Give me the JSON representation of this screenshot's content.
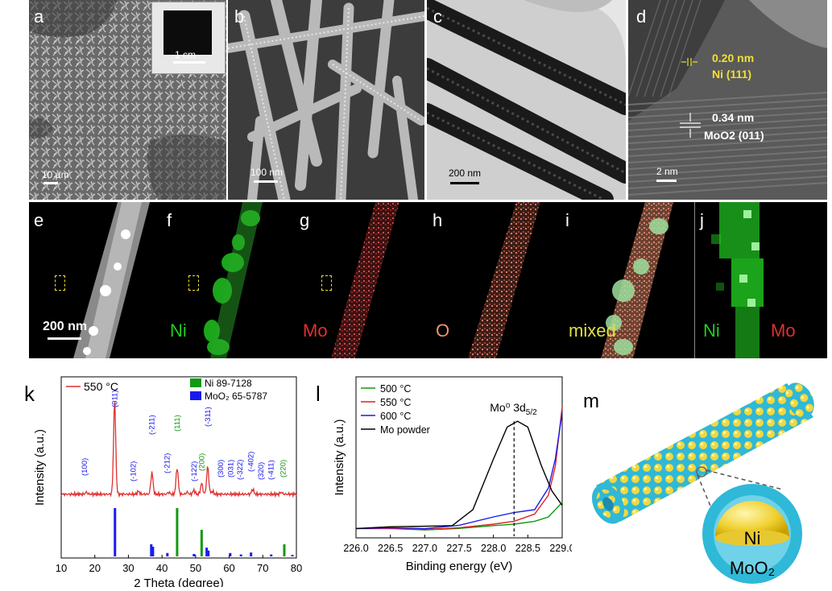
{
  "row1": {
    "a": {
      "label": "a",
      "scalebar": "10 µm",
      "inset_scale": "1 cm"
    },
    "b": {
      "label": "b",
      "scalebar": "100 nm"
    },
    "c": {
      "label": "c",
      "scalebar": "200 nm"
    },
    "d": {
      "label": "d",
      "scalebar": "2 nm",
      "fringe1_d": "0.20 nm",
      "fringe1_plane": "Ni (111)",
      "fringe2_d": "0.34 nm",
      "fringe2_plane": "MoO2 (011)"
    }
  },
  "row2": {
    "e": {
      "label": "e",
      "scalebar": "200 nm"
    },
    "f": {
      "label": "f",
      "element": "Ni"
    },
    "g": {
      "label": "g",
      "element": "Mo"
    },
    "h": {
      "label": "h",
      "element": "O"
    },
    "i": {
      "label": "i",
      "element": "mixed"
    },
    "j": {
      "label": "j",
      "element1": "Ni",
      "element2": "Mo"
    }
  },
  "colors": {
    "ni": "#22cc22",
    "mo": "#e03030",
    "o": "#f09070",
    "mixed": "#e0e040",
    "xrd_line": "#e03030",
    "ni_ref": "#119911",
    "moo2_ref": "#1a1aee"
  },
  "panel_k": {
    "label": "k",
    "legend_sample": "550 °C",
    "legend_ref1": "Ni 89-7128",
    "legend_ref2": "MoO₂ 65-5787",
    "xlabel": "2 Theta (degree)",
    "ylabel": "Intensity (a.u.)",
    "xticks": [
      "10",
      "20",
      "30",
      "40",
      "50",
      "60",
      "70",
      "80"
    ]
  },
  "panel_l": {
    "label": "l",
    "annotation_main": "Mo⁰ 3d",
    "annotation_sub": "5/2",
    "xlabel": "Binding energy (eV)",
    "ylabel": "Intensity (a.u.)",
    "xticks": [
      "226.0",
      "226.5",
      "227.0",
      "227.5",
      "228.0",
      "228.5",
      "229.0"
    ]
  },
  "panel_m": {
    "label": "m",
    "core": "Ni",
    "shell": "MoO₂"
  },
  "chart_data": [
    {
      "type": "line",
      "panel": "k",
      "xlabel": "2 Theta (degree)",
      "ylabel": "Intensity (a.u.)",
      "xlim": [
        10,
        80
      ],
      "series": [
        {
          "name": "550 °C",
          "x": [
            10,
            17.5,
            22,
            25.9,
            29.5,
            33,
            37,
            42,
            44.5,
            47.5,
            49.5,
            51.8,
            53.6,
            55,
            58,
            60.5,
            62.5,
            64.5,
            67,
            69.5,
            72,
            75.5,
            78,
            80
          ],
          "y": [
            0.05,
            0.07,
            0.05,
            1.0,
            0.06,
            0.08,
            0.27,
            0.07,
            0.32,
            0.07,
            0.09,
            0.16,
            0.33,
            0.08,
            0.05,
            0.06,
            0.05,
            0.05,
            0.1,
            0.06,
            0.05,
            0.07,
            0.05,
            0.05
          ]
        }
      ],
      "peak_labels": [
        {
          "x": 17,
          "label": "(100)",
          "phase": "MoO2"
        },
        {
          "x": 26,
          "label": "(011)",
          "phase": "MoO2"
        },
        {
          "x": 31.5,
          "label": "(-102)",
          "phase": "MoO2"
        },
        {
          "x": 37,
          "label": "(-211)",
          "phase": "MoO2"
        },
        {
          "x": 41.5,
          "label": "(-212)",
          "phase": "MoO2"
        },
        {
          "x": 44.5,
          "label": "(111)",
          "phase": "Ni"
        },
        {
          "x": 49.5,
          "label": "(-122)",
          "phase": "MoO2"
        },
        {
          "x": 51.8,
          "label": "(200)",
          "phase": "Ni"
        },
        {
          "x": 53.6,
          "label": "(-311)",
          "phase": "MoO2"
        },
        {
          "x": 57.5,
          "label": "(300)",
          "phase": "MoO2"
        },
        {
          "x": 60.5,
          "label": "(031)",
          "phase": "MoO2"
        },
        {
          "x": 63.2,
          "label": "(-322)",
          "phase": "MoO2"
        },
        {
          "x": 66.5,
          "label": "(-402)",
          "phase": "MoO2"
        },
        {
          "x": 69.5,
          "label": "(320)",
          "phase": "MoO2"
        },
        {
          "x": 72.5,
          "label": "(-411)",
          "phase": "MoO2"
        },
        {
          "x": 76,
          "label": "(220)",
          "phase": "Ni"
        }
      ],
      "reference_sticks": {
        "Ni 89-7128": [
          {
            "x": 44.5,
            "h": 1.0
          },
          {
            "x": 51.8,
            "h": 0.55
          },
          {
            "x": 76.4,
            "h": 0.25
          }
        ],
        "MoO₂ 65-5787": [
          {
            "x": 26,
            "h": 1.0
          },
          {
            "x": 36.8,
            "h": 0.25
          },
          {
            "x": 37.3,
            "h": 0.2
          },
          {
            "x": 41.6,
            "h": 0.07
          },
          {
            "x": 49.5,
            "h": 0.05
          },
          {
            "x": 53.3,
            "h": 0.18
          },
          {
            "x": 53.8,
            "h": 0.12
          },
          {
            "x": 60.3,
            "h": 0.07
          },
          {
            "x": 63.5,
            "h": 0.04
          },
          {
            "x": 66.5,
            "h": 0.08
          },
          {
            "x": 72.5,
            "h": 0.04
          },
          {
            "x": 78.8,
            "h": 0.03
          }
        ]
      }
    },
    {
      "type": "line",
      "panel": "l",
      "xlabel": "Binding energy (eV)",
      "ylabel": "Intensity (a.u.)",
      "xlim": [
        226.0,
        229.0
      ],
      "series": [
        {
          "name": "500 °C",
          "x": [
            226,
            226.5,
            227,
            227.5,
            228,
            228.3,
            228.6,
            228.8,
            229
          ],
          "y": [
            0.02,
            0.03,
            0.02,
            0.03,
            0.04,
            0.05,
            0.07,
            0.1,
            0.2
          ]
        },
        {
          "name": "550 °C",
          "x": [
            226,
            226.5,
            227,
            227.5,
            228,
            228.3,
            228.6,
            228.8,
            228.9,
            229
          ],
          "y": [
            0.02,
            0.03,
            0.02,
            0.03,
            0.05,
            0.07,
            0.12,
            0.25,
            0.45,
            0.86
          ]
        },
        {
          "name": "600 °C",
          "x": [
            226,
            226.5,
            227,
            227.5,
            228,
            228.3,
            228.6,
            228.8,
            228.9,
            229
          ],
          "y": [
            0.02,
            0.03,
            0.02,
            0.04,
            0.1,
            0.13,
            0.15,
            0.3,
            0.5,
            0.82
          ]
        },
        {
          "name": "Mo powder",
          "x": [
            226,
            226.5,
            227,
            227.4,
            227.7,
            228,
            228.2,
            228.35,
            228.5,
            228.7,
            228.85,
            229
          ],
          "y": [
            0.02,
            0.03,
            0.03,
            0.05,
            0.15,
            0.5,
            0.72,
            0.76,
            0.72,
            0.45,
            0.28,
            0.18
          ]
        }
      ],
      "vline_x": 228.3
    }
  ]
}
